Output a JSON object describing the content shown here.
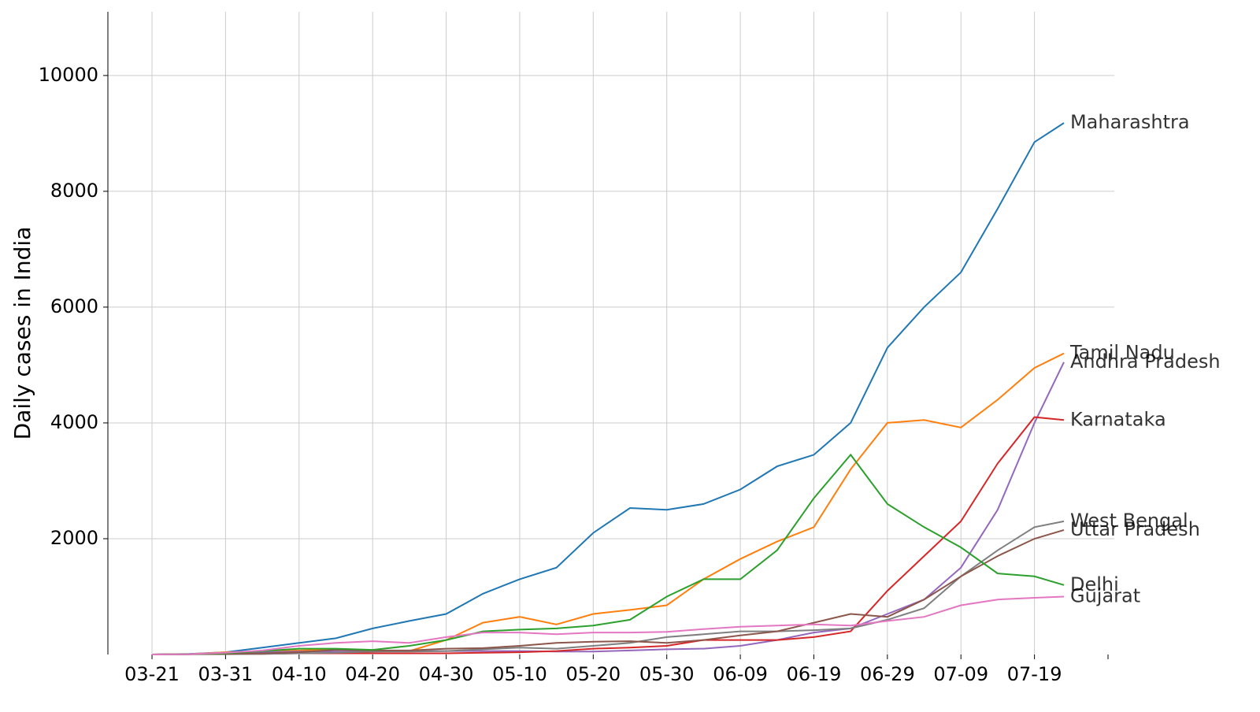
{
  "chart_data": {
    "type": "line",
    "y_label": "Daily cases in India",
    "x": [
      "03-21",
      "03-26",
      "03-31",
      "04-05",
      "04-10",
      "04-15",
      "04-20",
      "04-25",
      "04-30",
      "05-05",
      "05-10",
      "05-15",
      "05-20",
      "05-25",
      "05-30",
      "06-04",
      "06-09",
      "06-14",
      "06-19",
      "06-24",
      "06-29",
      "07-04",
      "07-09",
      "07-14",
      "07-19",
      "07-23"
    ],
    "xlim": [
      "03-15",
      "07-29"
    ],
    "xticks": [
      "03-21",
      "03-31",
      "04-10",
      "04-20",
      "04-30",
      "05-10",
      "05-20",
      "05-30",
      "06-09",
      "06-19",
      "06-29",
      "07-09",
      "07-19"
    ],
    "ylim": [
      0,
      11100
    ],
    "yticks": [
      2000,
      4000,
      6000,
      8000,
      10000
    ],
    "grid": true,
    "series": [
      {
        "name": "Maharashtra",
        "color": "#1f77b4",
        "values": [
          0,
          10,
          40,
          120,
          200,
          280,
          450,
          580,
          700,
          1050,
          1300,
          1500,
          2100,
          2530,
          2500,
          2600,
          2850,
          3250,
          3450,
          4000,
          5300,
          6000,
          6600,
          7700,
          8850,
          9180
        ]
      },
      {
        "name": "Tamil Nadu",
        "color": "#ff7f0e",
        "values": [
          0,
          5,
          40,
          50,
          70,
          90,
          60,
          60,
          250,
          550,
          650,
          520,
          700,
          770,
          850,
          1300,
          1650,
          1950,
          2200,
          3200,
          4000,
          4050,
          3920,
          4400,
          4950,
          5200
        ]
      },
      {
        "name": "Andhra Pradesh",
        "color": "#9467bd",
        "values": [
          0,
          5,
          20,
          40,
          50,
          50,
          50,
          60,
          60,
          60,
          60,
          50,
          50,
          70,
          90,
          100,
          150,
          250,
          380,
          450,
          700,
          950,
          1500,
          2500,
          4000,
          5050
        ]
      },
      {
        "name": "Karnataka",
        "color": "#d62728",
        "values": [
          0,
          5,
          10,
          10,
          20,
          20,
          20,
          20,
          20,
          30,
          40,
          60,
          100,
          120,
          150,
          250,
          250,
          250,
          300,
          400,
          1100,
          1700,
          2300,
          3300,
          4100,
          4050
        ]
      },
      {
        "name": "West Bengal",
        "color": "#7f7f7f",
        "values": [
          0,
          5,
          5,
          10,
          20,
          30,
          50,
          50,
          60,
          90,
          120,
          100,
          150,
          200,
          300,
          350,
          400,
          400,
          420,
          450,
          600,
          800,
          1350,
          1800,
          2200,
          2300
        ]
      },
      {
        "name": "Uttar Pradesh",
        "color": "#8c564b",
        "values": [
          0,
          5,
          10,
          20,
          40,
          80,
          70,
          70,
          100,
          110,
          150,
          200,
          220,
          230,
          200,
          250,
          330,
          400,
          550,
          700,
          650,
          950,
          1350,
          1700,
          2000,
          2150
        ]
      },
      {
        "name": "Delhi",
        "color": "#2ca02c",
        "values": [
          0,
          5,
          20,
          60,
          100,
          100,
          80,
          150,
          250,
          400,
          430,
          450,
          500,
          600,
          1000,
          1300,
          1300,
          1800,
          2700,
          3450,
          2600,
          2200,
          1850,
          1400,
          1350,
          1200
        ]
      },
      {
        "name": "Gujarat",
        "color": "#e377c2",
        "values": [
          0,
          5,
          30,
          70,
          150,
          200,
          230,
          200,
          300,
          380,
          380,
          350,
          380,
          380,
          390,
          440,
          480,
          500,
          520,
          500,
          580,
          650,
          850,
          950,
          980,
          1000
        ]
      }
    ]
  }
}
